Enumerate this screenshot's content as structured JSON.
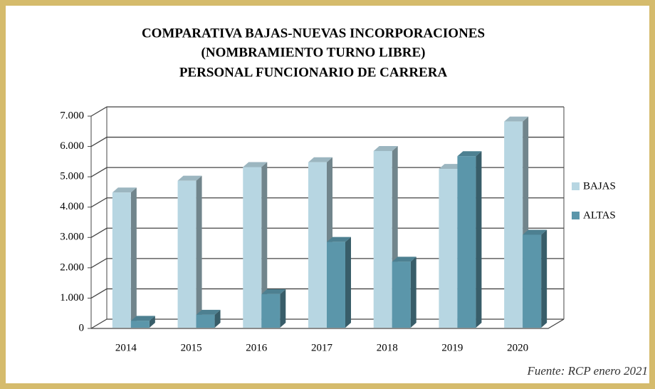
{
  "chart_data": {
    "type": "bar3d",
    "title": [
      "COMPARATIVA BAJAS-NUEVAS INCORPORACIONES",
      "(NOMBRAMIENTO TURNO LIBRE)",
      "PERSONAL FUNCIONARIO DE CARRERA"
    ],
    "source": "Fuente: RCP enero 2021",
    "categories": [
      "2014",
      "2015",
      "2016",
      "2017",
      "2018",
      "2019",
      "2020"
    ],
    "series": [
      {
        "name": "BAJAS",
        "color": "#b7d6e2",
        "values": [
          4480,
          4870,
          5320,
          5480,
          5850,
          5260,
          6820
        ]
      },
      {
        "name": "ALTAS",
        "color": "#5b96aa",
        "values": [
          250,
          450,
          1130,
          2850,
          2200,
          5680,
          3090
        ]
      }
    ],
    "ylim": [
      0,
      7000
    ],
    "yticks": [
      0,
      {
        "value": 1000,
        "label": "1.000"
      },
      {
        "value": 2000,
        "label": "2.000"
      },
      {
        "value": 3000,
        "label": "3.000"
      },
      {
        "value": 4000,
        "label": "4.000"
      },
      {
        "value": 5000,
        "label": "5.000"
      },
      {
        "value": 6000,
        "label": "6.000"
      },
      {
        "value": 7000,
        "label": "7.000"
      }
    ],
    "grid": true,
    "legend": "right"
  }
}
